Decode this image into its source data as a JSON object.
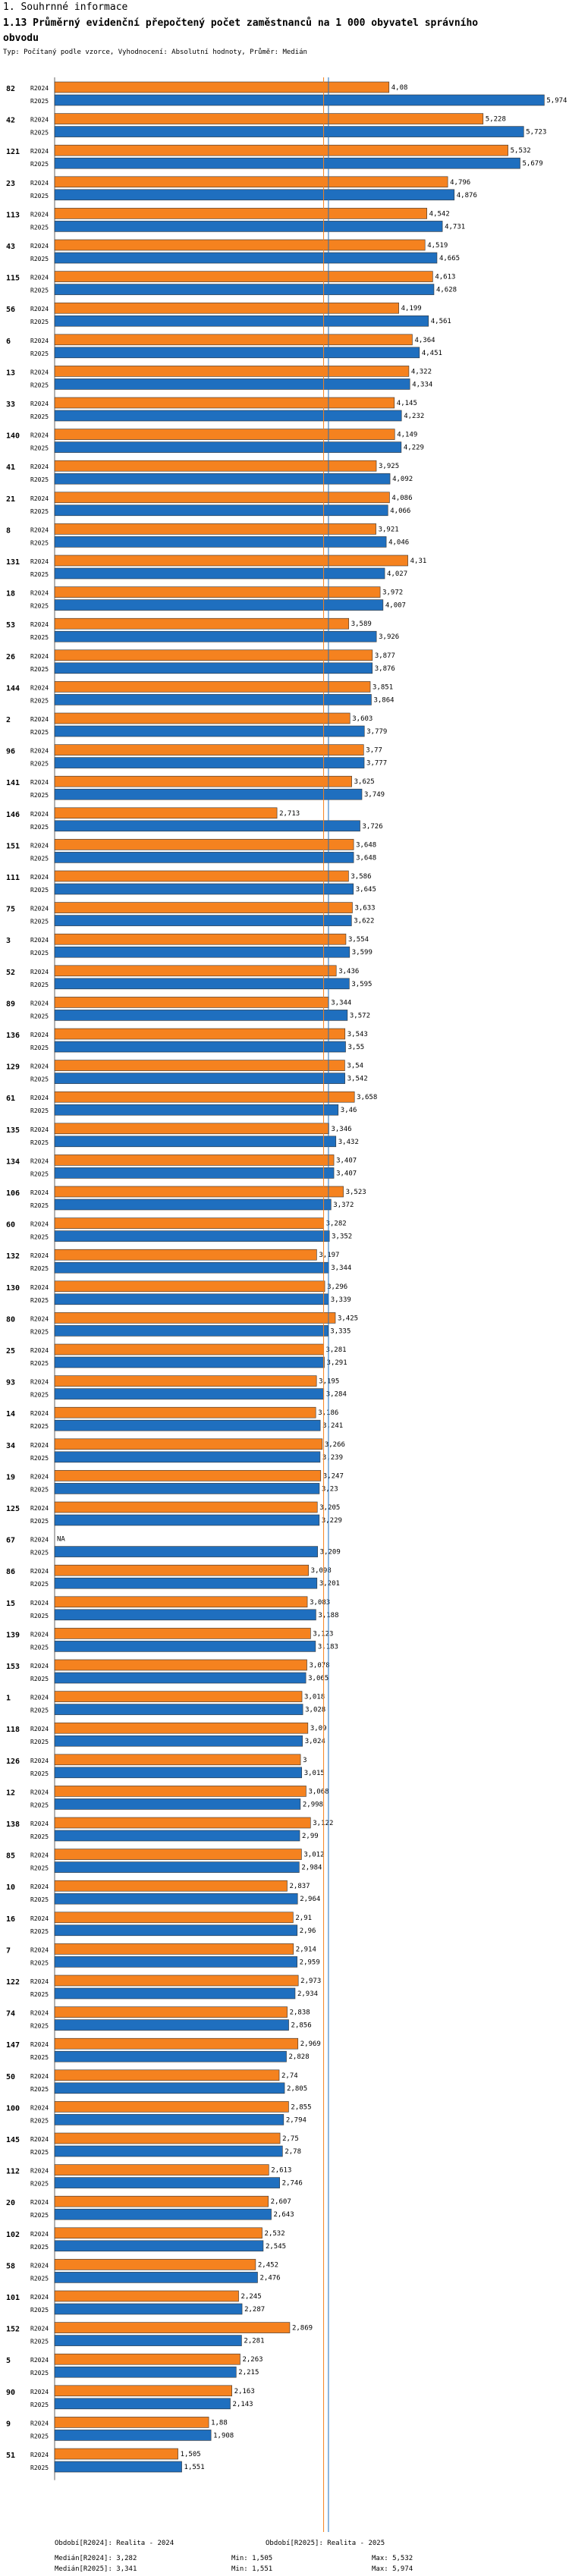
{
  "section_title": "1. Souhrnné informace",
  "chart_title": "1.13 Průměrný evidenční přepočtený počet zaměstnanců na 1 000 obyvatel správního obvodu",
  "subtitle": "Typ: Počítaný podle vzorce, Vyhodnocení: Absolutní hodnoty, Průměr: Medián",
  "colors": {
    "r2024": "#f5821f",
    "r2025": "#1f6fbf",
    "median2024": "#f5821f",
    "median2025": "#1f6fbf"
  },
  "chart_data": {
    "type": "bar",
    "orientation": "horizontal",
    "series_names": [
      "R2024",
      "R2025"
    ],
    "xlim": [
      0,
      6.1
    ],
    "medians": {
      "R2024": 3.282,
      "R2025": 3.341
    },
    "groups": [
      {
        "id": "82",
        "r2024": 4.08,
        "r2025": 5.974
      },
      {
        "id": "42",
        "r2024": 5.228,
        "r2025": 5.723
      },
      {
        "id": "121",
        "r2024": 5.532,
        "r2025": 5.679
      },
      {
        "id": "23",
        "r2024": 4.796,
        "r2025": 4.876
      },
      {
        "id": "113",
        "r2024": 4.542,
        "r2025": 4.731
      },
      {
        "id": "43",
        "r2024": 4.519,
        "r2025": 4.665
      },
      {
        "id": "115",
        "r2024": 4.613,
        "r2025": 4.628
      },
      {
        "id": "56",
        "r2024": 4.199,
        "r2025": 4.561
      },
      {
        "id": "6",
        "r2024": 4.364,
        "r2025": 4.451
      },
      {
        "id": "13",
        "r2024": 4.322,
        "r2025": 4.334
      },
      {
        "id": "33",
        "r2024": 4.145,
        "r2025": 4.232
      },
      {
        "id": "140",
        "r2024": 4.149,
        "r2025": 4.229
      },
      {
        "id": "41",
        "r2024": 3.925,
        "r2025": 4.092
      },
      {
        "id": "21",
        "r2024": 4.086,
        "r2025": 4.066
      },
      {
        "id": "8",
        "r2024": 3.921,
        "r2025": 4.046
      },
      {
        "id": "131",
        "r2024": 4.31,
        "r2025": 4.027
      },
      {
        "id": "18",
        "r2024": 3.972,
        "r2025": 4.007
      },
      {
        "id": "53",
        "r2024": 3.589,
        "r2025": 3.926
      },
      {
        "id": "26",
        "r2024": 3.877,
        "r2025": 3.876
      },
      {
        "id": "144",
        "r2024": 3.851,
        "r2025": 3.864
      },
      {
        "id": "2",
        "r2024": 3.603,
        "r2025": 3.779
      },
      {
        "id": "96",
        "r2024": 3.77,
        "r2025": 3.777
      },
      {
        "id": "141",
        "r2024": 3.625,
        "r2025": 3.749
      },
      {
        "id": "146",
        "r2024": 2.713,
        "r2025": 3.726
      },
      {
        "id": "151",
        "r2024": 3.648,
        "r2025": 3.648
      },
      {
        "id": "111",
        "r2024": 3.586,
        "r2025": 3.645
      },
      {
        "id": "75",
        "r2024": 3.633,
        "r2025": 3.622
      },
      {
        "id": "3",
        "r2024": 3.554,
        "r2025": 3.599
      },
      {
        "id": "52",
        "r2024": 3.436,
        "r2025": 3.595
      },
      {
        "id": "89",
        "r2024": 3.344,
        "r2025": 3.572
      },
      {
        "id": "136",
        "r2024": 3.543,
        "r2025": 3.55
      },
      {
        "id": "129",
        "r2024": 3.54,
        "r2025": 3.542
      },
      {
        "id": "61",
        "r2024": 3.658,
        "r2025": 3.46
      },
      {
        "id": "135",
        "r2024": 3.346,
        "r2025": 3.432
      },
      {
        "id": "134",
        "r2024": 3.407,
        "r2025": 3.407
      },
      {
        "id": "106",
        "r2024": 3.523,
        "r2025": 3.372
      },
      {
        "id": "60",
        "r2024": 3.282,
        "r2025": 3.352
      },
      {
        "id": "132",
        "r2024": 3.197,
        "r2025": 3.344
      },
      {
        "id": "130",
        "r2024": 3.296,
        "r2025": 3.339
      },
      {
        "id": "80",
        "r2024": 3.425,
        "r2025": 3.335
      },
      {
        "id": "25",
        "r2024": 3.281,
        "r2025": 3.291
      },
      {
        "id": "93",
        "r2024": 3.195,
        "r2025": 3.284
      },
      {
        "id": "14",
        "r2024": 3.186,
        "r2025": 3.241
      },
      {
        "id": "34",
        "r2024": 3.266,
        "r2025": 3.239
      },
      {
        "id": "19",
        "r2024": 3.247,
        "r2025": 3.23
      },
      {
        "id": "125",
        "r2024": 3.205,
        "r2025": 3.229
      },
      {
        "id": "67",
        "r2024": null,
        "r2025": 3.209
      },
      {
        "id": "86",
        "r2024": 3.098,
        "r2025": 3.201
      },
      {
        "id": "15",
        "r2024": 3.083,
        "r2025": 3.188
      },
      {
        "id": "139",
        "r2024": 3.123,
        "r2025": 3.183
      },
      {
        "id": "153",
        "r2024": 3.078,
        "r2025": 3.065
      },
      {
        "id": "1",
        "r2024": 3.018,
        "r2025": 3.028
      },
      {
        "id": "118",
        "r2024": 3.09,
        "r2025": 3.024
      },
      {
        "id": "126",
        "r2024": 3.0,
        "r2025": 3.015
      },
      {
        "id": "12",
        "r2024": 3.068,
        "r2025": 2.998
      },
      {
        "id": "138",
        "r2024": 3.122,
        "r2025": 2.99
      },
      {
        "id": "85",
        "r2024": 3.012,
        "r2025": 2.984
      },
      {
        "id": "10",
        "r2024": 2.837,
        "r2025": 2.964
      },
      {
        "id": "16",
        "r2024": 2.91,
        "r2025": 2.96
      },
      {
        "id": "7",
        "r2024": 2.914,
        "r2025": 2.959
      },
      {
        "id": "122",
        "r2024": 2.973,
        "r2025": 2.934
      },
      {
        "id": "74",
        "r2024": 2.838,
        "r2025": 2.856
      },
      {
        "id": "147",
        "r2024": 2.969,
        "r2025": 2.828
      },
      {
        "id": "50",
        "r2024": 2.74,
        "r2025": 2.805
      },
      {
        "id": "100",
        "r2024": 2.855,
        "r2025": 2.794
      },
      {
        "id": "145",
        "r2024": 2.75,
        "r2025": 2.78
      },
      {
        "id": "112",
        "r2024": 2.613,
        "r2025": 2.746
      },
      {
        "id": "20",
        "r2024": 2.607,
        "r2025": 2.643
      },
      {
        "id": "102",
        "r2024": 2.532,
        "r2025": 2.545
      },
      {
        "id": "58",
        "r2024": 2.452,
        "r2025": 2.476
      },
      {
        "id": "101",
        "r2024": 2.245,
        "r2025": 2.287
      },
      {
        "id": "152",
        "r2024": 2.869,
        "r2025": 2.281
      },
      {
        "id": "5",
        "r2024": 2.263,
        "r2025": 2.215
      },
      {
        "id": "90",
        "r2024": 2.163,
        "r2025": 2.143
      },
      {
        "id": "9",
        "r2024": 1.88,
        "r2025": 1.908
      },
      {
        "id": "51",
        "r2024": 1.505,
        "r2025": 1.551
      }
    ],
    "na_label": "NA"
  },
  "footer": {
    "legend_2024": "Období[R2024]: Realita - 2024",
    "legend_2025": "Období[R2025]: Realita - 2025",
    "median_2024": "Medián[R2024]: 3,282",
    "median_2025": "Medián[R2025]: 3,341",
    "min_2024": "Min: 1,505",
    "min_2025": "Min: 1,551",
    "max_2024": "Max: 5,532",
    "max_2025": "Max: 5,974"
  }
}
